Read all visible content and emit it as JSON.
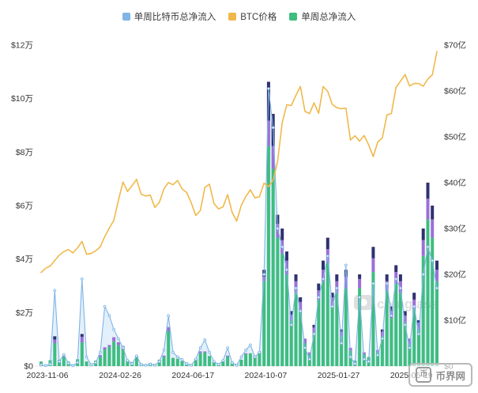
{
  "legend": [
    {
      "label": "单周比特币总净流入",
      "color": "#7fb5e6"
    },
    {
      "label": "BTC价格",
      "color": "#f0b84b"
    },
    {
      "label": "单周总净流入",
      "color": "#3ebd7f"
    }
  ],
  "watermark": {
    "text": "coinglass",
    "color": "#c6c6c6"
  },
  "footer_logo": {
    "icon_char": "币",
    "text": "币界网"
  },
  "colors": {
    "btc_flow_line": "#7fb5e6",
    "btc_price_line": "#f0b84b",
    "bar_green": "#3ebd7f",
    "bar_purple": "#9b6fd6",
    "bar_navy": "#2f3170",
    "axis_text": "#333333"
  },
  "chart_data": {
    "type": "mixed",
    "weeks": 88,
    "start_week": "2023-11-06",
    "x_ticks": {
      "labels": [
        "2023-11-06",
        "2024-02-26",
        "2024-06-17",
        "2024-10-07",
        "2025-01-27",
        "2025-05-19"
      ],
      "week_indices": [
        0,
        16,
        32,
        48,
        64,
        80
      ]
    },
    "left_axis": {
      "applies_to": "BTC价格",
      "tick_labels": [
        "$0",
        "$2万",
        "$4万",
        "$6万",
        "$8万",
        "$10万",
        "$12万"
      ],
      "tick_values": [
        0,
        20000,
        40000,
        60000,
        80000,
        100000,
        120000
      ],
      "max": 120000
    },
    "right_axis": {
      "applies_to": "净流入 (亿美元)",
      "tick_labels": [
        "$0",
        "$10亿",
        "$20亿",
        "$30亿",
        "$40亿",
        "$50亿",
        "$60亿",
        "$70亿"
      ],
      "tick_values": [
        0,
        10,
        20,
        30,
        40,
        50,
        60,
        70
      ],
      "max": 70
    },
    "series": [
      {
        "name": "BTC价格",
        "type": "line",
        "axis": "left",
        "color": "#f0b84b",
        "values": [
          35000,
          36600,
          37400,
          39500,
          41500,
          42800,
          43600,
          42300,
          44200,
          46600,
          41800,
          42100,
          43100,
          44600,
          48400,
          51600,
          54500,
          62000,
          68800,
          65300,
          67500,
          69800,
          64200,
          63600,
          63900,
          59300,
          61200,
          66300,
          68600,
          67800,
          69400,
          66200,
          64900,
          61100,
          56300,
          58200,
          66800,
          68000,
          60800,
          58800,
          59500,
          64100,
          57400,
          54200,
          60100,
          63400,
          65900,
          62900,
          63300,
          68400,
          67100,
          69500,
          76600,
          91000,
          97700,
          97400,
          101200,
          104500,
          95200,
          94400,
          98400,
          94500,
          104500,
          102700,
          97800,
          96600,
          96200,
          96400,
          84500,
          86100,
          84100,
          86200,
          82700,
          78300,
          83800,
          85300,
          93900,
          94400,
          104200,
          106500,
          109000,
          104700,
          105700,
          105600,
          104600,
          107300,
          108900,
          117600
        ]
      },
      {
        "name": "单周比特币总净流入",
        "type": "line-area",
        "axis": "right",
        "color": "#7fb5e6",
        "values": [
          0.3,
          0.1,
          0.4,
          16.5,
          1.0,
          2.5,
          0.6,
          0.1,
          0.8,
          19.0,
          2.0,
          0.3,
          0.8,
          3.0,
          13.0,
          11.0,
          8.0,
          6.0,
          4.0,
          1.2,
          0.5,
          2.2,
          0.3,
          0.2,
          0.4,
          0.2,
          1.0,
          3.5,
          11.0,
          3.0,
          2.0,
          1.4,
          0.5,
          0.2,
          1.5,
          4.0,
          5.7,
          3.0,
          1.0,
          0.4,
          1.2,
          4.0,
          0.7,
          0.2,
          2.0,
          3.5,
          4.6,
          2.0,
          3.0,
          20.0,
          60.5,
          52.0,
          30.0,
          26.0,
          21.0,
          9.0,
          17.0,
          12.0,
          4.0,
          1.5,
          7.0,
          15.0,
          19.0,
          24.0,
          13.0,
          17.0,
          5.0,
          22.0,
          2.0,
          0.5,
          15.0,
          1.5,
          1.0,
          18.0,
          2.4,
          6.0,
          18.0,
          11.0,
          19.0,
          17.0,
          9.0,
          4.0,
          13.0,
          7.0,
          20.0,
          26.0,
          23.0,
          17.0
        ]
      },
      {
        "name": "单周总净流入",
        "type": "stacked-bar",
        "axis": "right",
        "stacks": [
          {
            "name": "green-segment",
            "color": "#3ebd7f",
            "values": [
              1.0,
              0.3,
              1.3,
              5.0,
              1.4,
              2.0,
              1.0,
              0.4,
              1.5,
              5.2,
              1.0,
              0.6,
              1.2,
              2.0,
              3.6,
              4.2,
              5.4,
              4.6,
              3.8,
              1.4,
              0.9,
              2.0,
              0.6,
              0.4,
              0.7,
              0.5,
              1.4,
              2.0,
              7.6,
              1.8,
              1.6,
              1.1,
              0.8,
              0.5,
              1.6,
              2.8,
              3.0,
              2.2,
              0.9,
              0.6,
              1.2,
              2.1,
              0.9,
              0.5,
              1.4,
              2.6,
              2.8,
              2.3,
              3.0,
              18.5,
              48.0,
              43.0,
              28.0,
              24.5,
              20.0,
              10.0,
              16.0,
              12.0,
              5.0,
              2.6,
              7.4,
              14.5,
              18.5,
              22.5,
              13.0,
              16.0,
              6.5,
              17.0,
              3.4,
              1.2,
              17.0,
              2.5,
              2.0,
              20.5,
              3.0,
              6.5,
              16.5,
              10.5,
              18.0,
              16.0,
              9.5,
              4.8,
              12.5,
              8.0,
              24.0,
              32.0,
              28.0,
              18.5
            ]
          },
          {
            "name": "purple-segment",
            "color": "#9b6fd6",
            "values": [
              0,
              0,
              0,
              0.8,
              0,
              0.3,
              0,
              0,
              0,
              1.2,
              0,
              0,
              0,
              0.4,
              0.5,
              0.4,
              0.9,
              0.6,
              0.6,
              0,
              0,
              0.2,
              0,
              0,
              0,
              0,
              0,
              0.3,
              0.9,
              0,
              0,
              0,
              0,
              0,
              0,
              0.4,
              0.2,
              0,
              0,
              0,
              0,
              0.2,
              0,
              0,
              0,
              0.2,
              0,
              0,
              0.2,
              1.0,
              5.5,
              5.0,
              3.0,
              3.0,
              3.0,
              1.2,
              2.5,
              2.0,
              1.0,
              0.4,
              1.0,
              2.0,
              2.5,
              3.0,
              2.0,
              2.5,
              1.0,
              2.5,
              0.6,
              0,
              2.0,
              0.5,
              0,
              3.0,
              0.5,
              1.0,
              2.0,
              1.5,
              2.5,
              2.5,
              1.5,
              1.2,
              2.0,
              1.5,
              3.5,
              4.5,
              4.0,
              2.5
            ]
          },
          {
            "name": "navy-segment",
            "color": "#2f3170",
            "values": [
              0,
              0,
              0,
              0.7,
              0,
              0,
              0,
              0,
              0,
              0.6,
              0,
              0,
              0,
              0,
              0,
              0,
              0,
              0,
              0,
              0,
              0,
              0,
              0,
              0,
              0,
              0,
              0,
              0,
              0,
              0,
              0,
              0,
              0,
              0,
              0,
              0,
              0,
              0,
              0,
              0,
              0,
              0,
              0,
              0,
              0,
              0,
              0,
              0,
              0,
              1.5,
              8.5,
              7.0,
              2.0,
              2.5,
              2.0,
              0.8,
              1.5,
              1.0,
              0,
              0,
              0.6,
              1.5,
              2.0,
              2.5,
              1.0,
              1.5,
              0.5,
              1.5,
              0,
              0,
              1.0,
              0,
              0,
              2.5,
              0,
              0.5,
              1.5,
              1.0,
              1.5,
              1.5,
              1.0,
              0,
              1.5,
              0.5,
              2.5,
              3.5,
              3.0,
              2.0
            ]
          }
        ]
      }
    ]
  }
}
